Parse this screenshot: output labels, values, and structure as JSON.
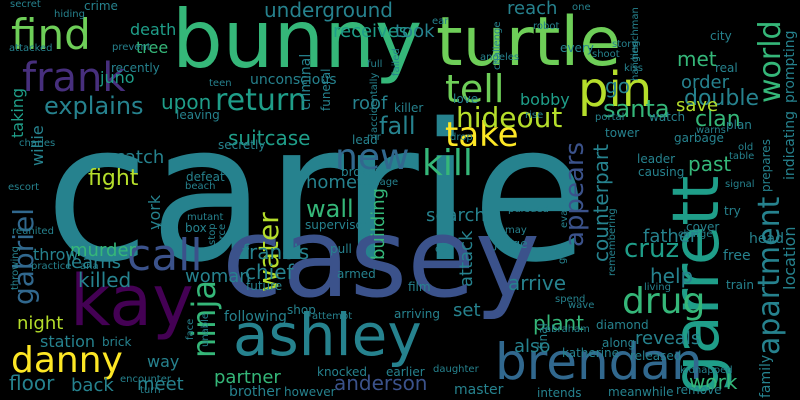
{
  "palette": {
    "background": "#000000",
    "dark_purple": "#440154",
    "indigo": "#472f7d",
    "blue": "#3b528b",
    "slate": "#31688e",
    "teal_blue": "#26828e",
    "teal": "#1f9e89",
    "green": "#35b779",
    "lime": "#6ece58",
    "yellow_green": "#b5de2b",
    "yellow": "#fde725"
  },
  "words": [
    {
      "text": "carrie",
      "color": "#26828e"
    },
    {
      "text": "casey",
      "color": "#3b528b"
    },
    {
      "text": "bunny",
      "color": "#35b779"
    },
    {
      "text": "turtle",
      "color": "#6ece58"
    },
    {
      "text": "garrett",
      "color": "#1f9e89"
    },
    {
      "text": "kay",
      "color": "#440154"
    },
    {
      "text": "ashley",
      "color": "#26828e"
    },
    {
      "text": "brendan",
      "color": "#31688e"
    },
    {
      "text": "apartment",
      "color": "#26828e"
    },
    {
      "text": "world",
      "color": "#35b779"
    },
    {
      "text": "pin",
      "color": "#b5de2b"
    },
    {
      "text": "find",
      "color": "#6ece58"
    },
    {
      "text": "frank",
      "color": "#472f7d"
    },
    {
      "text": "tell",
      "color": "#6ece58"
    },
    {
      "text": "return",
      "color": "#1f9e89"
    },
    {
      "text": "call",
      "color": "#3b528b"
    },
    {
      "text": "kill",
      "color": "#35b779"
    },
    {
      "text": "take",
      "color": "#fde725"
    },
    {
      "text": "new",
      "color": "#31688e"
    },
    {
      "text": "danny",
      "color": "#fde725"
    },
    {
      "text": "ninja",
      "color": "#35b779"
    },
    {
      "text": "gabriel",
      "color": "#31688e"
    },
    {
      "text": "water",
      "color": "#b5de2b"
    },
    {
      "text": "drug",
      "color": "#35b779"
    },
    {
      "text": "explains",
      "color": "#26828e"
    },
    {
      "text": "hideout",
      "color": "#b5de2b"
    },
    {
      "text": "fight",
      "color": "#b5de2b"
    },
    {
      "text": "wall",
      "color": "#35b779"
    },
    {
      "text": "appears",
      "color": "#3b528b"
    },
    {
      "text": "cruz",
      "color": "#1f9e89"
    },
    {
      "text": "santa",
      "color": "#35b779"
    },
    {
      "text": "double",
      "color": "#26828e"
    },
    {
      "text": "clan",
      "color": "#35b779"
    },
    {
      "text": "location",
      "color": "#26828e"
    },
    {
      "text": "indicating",
      "color": "#26828e"
    },
    {
      "text": "prompting",
      "color": "#26828e"
    },
    {
      "text": "underground",
      "color": "#26828e"
    },
    {
      "text": "receives",
      "color": "#1f9e89"
    },
    {
      "text": "took",
      "color": "#26828e"
    },
    {
      "text": "reach",
      "color": "#26828e"
    },
    {
      "text": "death",
      "color": "#1f9e89"
    },
    {
      "text": "tree",
      "color": "#35b779"
    },
    {
      "text": "met",
      "color": "#35b779"
    },
    {
      "text": "juno",
      "color": "#1f9e89"
    },
    {
      "text": "upon",
      "color": "#1f9e89"
    },
    {
      "text": "roof",
      "color": "#26828e"
    },
    {
      "text": "fall",
      "color": "#26828e"
    },
    {
      "text": "bobby",
      "color": "#1f9e89"
    },
    {
      "text": "go",
      "color": "#26828e"
    },
    {
      "text": "order",
      "color": "#26828e"
    },
    {
      "text": "save",
      "color": "#b5de2b"
    },
    {
      "text": "taking",
      "color": "#1f9e89"
    },
    {
      "text": "willie",
      "color": "#26828e"
    },
    {
      "text": "catch",
      "color": "#26828e"
    },
    {
      "text": "suitcase",
      "color": "#1f9e89"
    },
    {
      "text": "home",
      "color": "#26828e"
    },
    {
      "text": "building",
      "color": "#35b779"
    },
    {
      "text": "search",
      "color": "#26828e"
    },
    {
      "text": "counterpart",
      "color": "#26828e"
    },
    {
      "text": "past",
      "color": "#35b779"
    },
    {
      "text": "father",
      "color": "#26828e"
    },
    {
      "text": "help",
      "color": "#26828e"
    },
    {
      "text": "murder",
      "color": "#35b779"
    },
    {
      "text": "throw",
      "color": "#26828e"
    },
    {
      "text": "learns",
      "color": "#26828e"
    },
    {
      "text": "york",
      "color": "#26828e"
    },
    {
      "text": "francis",
      "color": "#26828e"
    },
    {
      "text": "chief",
      "color": "#26828e"
    },
    {
      "text": "attack",
      "color": "#26828e"
    },
    {
      "text": "arrive",
      "color": "#26828e"
    },
    {
      "text": "killed",
      "color": "#26828e"
    },
    {
      "text": "woman",
      "color": "#26828e"
    },
    {
      "text": "night",
      "color": "#b5de2b"
    },
    {
      "text": "station",
      "color": "#26828e"
    },
    {
      "text": "set",
      "color": "#26828e"
    },
    {
      "text": "plant",
      "color": "#35b779"
    },
    {
      "text": "reveals",
      "color": "#26828e"
    },
    {
      "text": "work",
      "color": "#35b779"
    },
    {
      "text": "partner",
      "color": "#35b779"
    },
    {
      "text": "anderson",
      "color": "#3b528b"
    },
    {
      "text": "also",
      "color": "#26828e"
    },
    {
      "text": "way",
      "color": "#26828e"
    },
    {
      "text": "meet",
      "color": "#26828e"
    },
    {
      "text": "floor",
      "color": "#26828e"
    },
    {
      "text": "back",
      "color": "#26828e"
    },
    {
      "text": "family",
      "color": "#26828e"
    },
    {
      "text": "secret",
      "color": "#26828e"
    },
    {
      "text": "hiding",
      "color": "#26828e"
    },
    {
      "text": "crime",
      "color": "#26828e"
    },
    {
      "text": "attacked",
      "color": "#26828e"
    },
    {
      "text": "prevent",
      "color": "#26828e"
    },
    {
      "text": "recently",
      "color": "#26828e"
    },
    {
      "text": "teen",
      "color": "#26828e"
    },
    {
      "text": "leaving",
      "color": "#26828e"
    },
    {
      "text": "charles",
      "color": "#26828e"
    },
    {
      "text": "secretly",
      "color": "#26828e"
    },
    {
      "text": "unconscious",
      "color": "#26828e"
    },
    {
      "text": "criminal",
      "color": "#26828e"
    },
    {
      "text": "funeral",
      "color": "#26828e"
    },
    {
      "text": "lead",
      "color": "#26828e"
    },
    {
      "text": "killer",
      "color": "#26828e"
    },
    {
      "text": "love",
      "color": "#26828e"
    },
    {
      "text": "angeles",
      "color": "#26828e"
    },
    {
      "text": "robot",
      "color": "#26828e"
    },
    {
      "text": "every",
      "color": "#26828e"
    },
    {
      "text": "shoot",
      "color": "#26828e"
    },
    {
      "text": "story",
      "color": "#26828e"
    },
    {
      "text": "city",
      "color": "#26828e"
    },
    {
      "text": "real",
      "color": "#26828e"
    },
    {
      "text": "tower",
      "color": "#26828e"
    },
    {
      "text": "portal",
      "color": "#26828e"
    },
    {
      "text": "watch",
      "color": "#26828e"
    },
    {
      "text": "garbage",
      "color": "#26828e"
    },
    {
      "text": "plan",
      "color": "#26828e"
    },
    {
      "text": "ear",
      "color": "#26828e"
    },
    {
      "text": "one",
      "color": "#26828e"
    },
    {
      "text": "rise",
      "color": "#26828e"
    },
    {
      "text": "fire",
      "color": "#26828e"
    },
    {
      "text": "mr",
      "color": "#26828e"
    },
    {
      "text": "drop",
      "color": "#26828e"
    },
    {
      "text": "escort",
      "color": "#26828e"
    },
    {
      "text": "defeat",
      "color": "#26828e"
    },
    {
      "text": "beach",
      "color": "#26828e"
    },
    {
      "text": "broken",
      "color": "#26828e"
    },
    {
      "text": "teenage",
      "color": "#26828e"
    },
    {
      "text": "leader",
      "color": "#26828e"
    },
    {
      "text": "causing",
      "color": "#26828e"
    },
    {
      "text": "signal",
      "color": "#26828e"
    },
    {
      "text": "prepares",
      "color": "#26828e"
    },
    {
      "text": "try",
      "color": "#26828e"
    },
    {
      "text": "head",
      "color": "#26828e"
    },
    {
      "text": "free",
      "color": "#26828e"
    },
    {
      "text": "train",
      "color": "#26828e"
    },
    {
      "text": "living",
      "color": "#26828e"
    },
    {
      "text": "mutant",
      "color": "#26828e"
    },
    {
      "text": "box",
      "color": "#26828e"
    },
    {
      "text": "rat",
      "color": "#26828e"
    },
    {
      "text": "reunited",
      "color": "#26828e"
    },
    {
      "text": "force",
      "color": "#26828e"
    },
    {
      "text": "stop",
      "color": "#26828e"
    },
    {
      "text": "supervisor",
      "color": "#26828e"
    },
    {
      "text": "pull",
      "color": "#26828e"
    },
    {
      "text": "day",
      "color": "#26828e"
    },
    {
      "text": "judge",
      "color": "#26828e"
    },
    {
      "text": "may",
      "color": "#26828e"
    },
    {
      "text": "evades",
      "color": "#26828e"
    },
    {
      "text": "pursued",
      "color": "#26828e"
    },
    {
      "text": "give",
      "color": "#26828e"
    },
    {
      "text": "remembering",
      "color": "#26828e"
    },
    {
      "text": "cover",
      "color": "#26828e"
    },
    {
      "text": "charge",
      "color": "#26828e"
    },
    {
      "text": "armed",
      "color": "#26828e"
    },
    {
      "text": "future",
      "color": "#26828e"
    },
    {
      "text": "film",
      "color": "#26828e"
    },
    {
      "text": "spend",
      "color": "#26828e"
    },
    {
      "text": "wave",
      "color": "#26828e"
    },
    {
      "text": "diamond",
      "color": "#26828e"
    },
    {
      "text": "released",
      "color": "#26828e"
    },
    {
      "text": "practice",
      "color": "#26828e"
    },
    {
      "text": "ana",
      "color": "#26828e"
    },
    {
      "text": "throwing",
      "color": "#26828e"
    },
    {
      "text": "brick",
      "color": "#26828e"
    },
    {
      "text": "face",
      "color": "#26828e"
    },
    {
      "text": "following",
      "color": "#26828e"
    },
    {
      "text": "shop",
      "color": "#26828e"
    },
    {
      "text": "attempt",
      "color": "#26828e"
    },
    {
      "text": "arriving",
      "color": "#26828e"
    },
    {
      "text": "abraham",
      "color": "#26828e"
    },
    {
      "text": "katherine",
      "color": "#26828e"
    },
    {
      "text": "along",
      "color": "#26828e"
    },
    {
      "text": "knocked",
      "color": "#26828e"
    },
    {
      "text": "earlier",
      "color": "#26828e"
    },
    {
      "text": "daughter",
      "color": "#26828e"
    },
    {
      "text": "encounter",
      "color": "#26828e"
    },
    {
      "text": "turn",
      "color": "#26828e"
    },
    {
      "text": "brother",
      "color": "#26828e"
    },
    {
      "text": "however",
      "color": "#26828e"
    },
    {
      "text": "master",
      "color": "#26828e"
    },
    {
      "text": "intends",
      "color": "#26828e"
    },
    {
      "text": "meanwhile",
      "color": "#26828e"
    },
    {
      "text": "kidnapped",
      "color": "#26828e"
    },
    {
      "text": "remove",
      "color": "#26828e"
    },
    {
      "text": "unable",
      "color": "#26828e"
    },
    {
      "text": "challenge",
      "color": "#26828e"
    },
    {
      "text": "henchman",
      "color": "#26828e"
    },
    {
      "text": "warns",
      "color": "#26828e"
    },
    {
      "text": "old",
      "color": "#26828e"
    },
    {
      "text": "table",
      "color": "#26828e"
    },
    {
      "text": "final",
      "color": "#26828e"
    },
    {
      "text": "full",
      "color": "#26828e"
    },
    {
      "text": "failed",
      "color": "#26828e"
    },
    {
      "text": "hanging",
      "color": "#26828e"
    },
    {
      "text": "kiss",
      "color": "#26828e"
    },
    {
      "text": "accidentally",
      "color": "#26828e"
    }
  ]
}
